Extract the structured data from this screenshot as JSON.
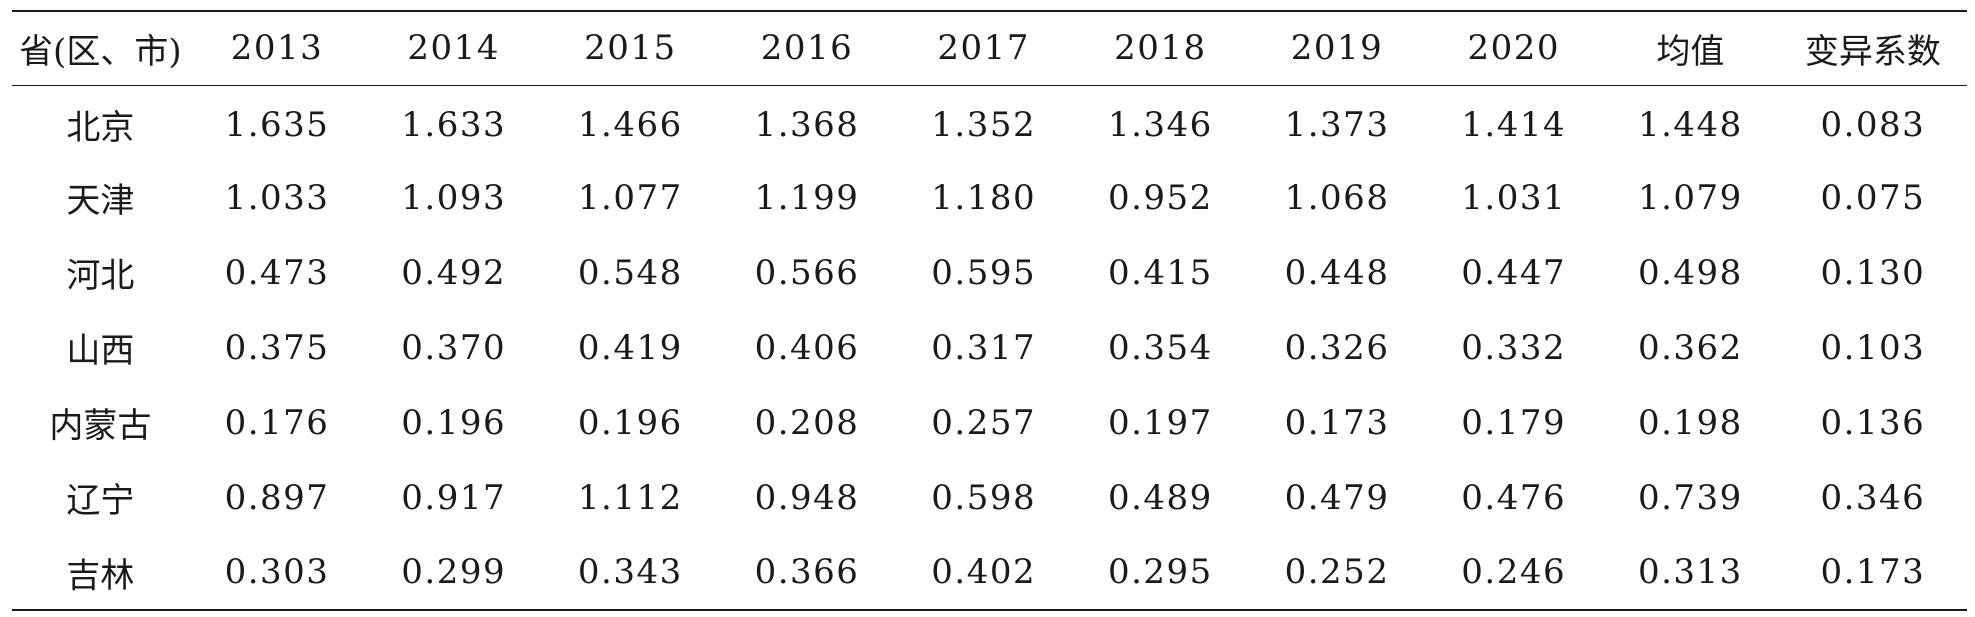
{
  "table": {
    "headers": [
      "省(区、市)",
      "2013",
      "2014",
      "2015",
      "2016",
      "2017",
      "2018",
      "2019",
      "2020",
      "均值",
      "变异系数"
    ],
    "rows": [
      [
        "北京",
        "1.635",
        "1.633",
        "1.466",
        "1.368",
        "1.352",
        "1.346",
        "1.373",
        "1.414",
        "1.448",
        "0.083"
      ],
      [
        "天津",
        "1.033",
        "1.093",
        "1.077",
        "1.199",
        "1.180",
        "0.952",
        "1.068",
        "1.031",
        "1.079",
        "0.075"
      ],
      [
        "河北",
        "0.473",
        "0.492",
        "0.548",
        "0.566",
        "0.595",
        "0.415",
        "0.448",
        "0.447",
        "0.498",
        "0.130"
      ],
      [
        "山西",
        "0.375",
        "0.370",
        "0.419",
        "0.406",
        "0.317",
        "0.354",
        "0.326",
        "0.332",
        "0.362",
        "0.103"
      ],
      [
        "内蒙古",
        "0.176",
        "0.196",
        "0.196",
        "0.208",
        "0.257",
        "0.197",
        "0.173",
        "0.179",
        "0.198",
        "0.136"
      ],
      [
        "辽宁",
        "0.897",
        "0.917",
        "1.112",
        "0.948",
        "0.598",
        "0.489",
        "0.479",
        "0.476",
        "0.739",
        "0.346"
      ],
      [
        "吉林",
        "0.303",
        "0.299",
        "0.343",
        "0.366",
        "0.402",
        "0.295",
        "0.252",
        "0.246",
        "0.313",
        "0.173"
      ]
    ]
  }
}
